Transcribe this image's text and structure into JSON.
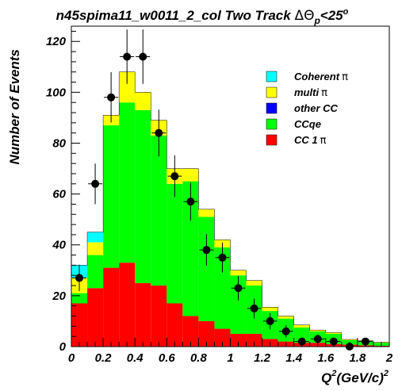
{
  "chart_data": {
    "type": "bar",
    "title": "n45spima11_w0011_2_col Two Track ΔΘp<25°",
    "title_parts": {
      "main": "n45spima11_w0011_2_col Two Track ",
      "symbol": "ΔΘ",
      "sub": "p",
      "cut": "<25",
      "sup": "o"
    },
    "xlabel": "Q2(GeV/c)2",
    "xlabel_parts": {
      "q": "Q",
      "sup1": "2",
      "unit": "(GeV/c)",
      "sup2": "2"
    },
    "ylabel": "Number of Events",
    "xlim": [
      0,
      2
    ],
    "ylim": [
      0,
      126
    ],
    "x_ticks": [
      0,
      0.2,
      0.4,
      0.6,
      0.8,
      1,
      1.2,
      1.4,
      1.6,
      1.8,
      2
    ],
    "x_tick_labels": [
      "0",
      "0.2",
      "0.4",
      "0.6",
      "0.8",
      "1",
      "1.2",
      "1.4",
      "1.6",
      "1.8",
      "2"
    ],
    "y_ticks": [
      0,
      20,
      40,
      60,
      80,
      100,
      120
    ],
    "y_tick_labels": [
      "0",
      "20",
      "40",
      "60",
      "80",
      "100",
      "120"
    ],
    "bin_edges": [
      0,
      0.1,
      0.2,
      0.3,
      0.4,
      0.5,
      0.6,
      0.7,
      0.8,
      0.9,
      1.0,
      1.1,
      1.2,
      1.3,
      1.4,
      1.5,
      1.6,
      1.7,
      1.8,
      1.9,
      2.0
    ],
    "stacked": true,
    "series": [
      {
        "name": "CC 1π",
        "label": "CC 1",
        "pi": "π",
        "color": "#ff0000",
        "values": [
          17,
          23,
          31,
          33,
          25,
          24,
          17,
          12,
          10,
          7,
          5,
          5,
          3,
          2,
          1.5,
          1.5,
          1,
          0.8,
          0.5,
          0.3
        ]
      },
      {
        "name": "CCqe",
        "label": "CCqe",
        "pi": "",
        "color": "#00ff00",
        "values": [
          4,
          13,
          56,
          63,
          68,
          59,
          47,
          53,
          41,
          32,
          23,
          19,
          11,
          9,
          6,
          4.5,
          4,
          1.7,
          1.5,
          1.2
        ]
      },
      {
        "name": "other CC",
        "label": "other CC",
        "pi": "",
        "color": "#0000ff",
        "values": [
          0,
          0,
          0,
          0,
          0,
          0,
          0,
          0,
          0,
          0,
          0,
          0,
          0,
          0,
          0,
          0,
          0,
          0,
          0,
          0
        ]
      },
      {
        "name": "multi π",
        "label": "multi",
        "pi": "π",
        "color": "#ffff00",
        "values": [
          6,
          5,
          4,
          12,
          7,
          6,
          6,
          5,
          3,
          3,
          2,
          2,
          1.5,
          1,
          1,
          0.5,
          0.5,
          0.3,
          0.3,
          0.2
        ]
      },
      {
        "name": "Coherent π",
        "label": "Coherent",
        "pi": "π",
        "color": "#00ffff",
        "values": [
          5,
          4,
          0,
          0,
          0,
          0,
          0,
          0,
          0,
          0,
          0,
          0,
          0,
          0,
          0,
          0,
          0,
          0,
          0,
          0
        ]
      }
    ],
    "legend_order": [
      "Coherent π",
      "multi π",
      "other CC",
      "CCqe",
      "CC 1π"
    ],
    "legend_placement": "top-right",
    "data_points": {
      "x": [
        0.05,
        0.15,
        0.25,
        0.35,
        0.45,
        0.55,
        0.65,
        0.75,
        0.85,
        0.95,
        1.05,
        1.15,
        1.25,
        1.35,
        1.45,
        1.55,
        1.65,
        1.75,
        1.85
      ],
      "y": [
        27,
        64,
        98,
        114,
        114,
        84,
        67,
        57,
        38,
        35,
        23,
        15,
        10,
        6,
        2,
        3,
        2,
        0,
        2
      ],
      "err": [
        5.2,
        8,
        9.9,
        10.7,
        10.7,
        9.2,
        8.2,
        7.5,
        6.2,
        5.9,
        4.8,
        3.9,
        3.2,
        2.4,
        1.4,
        1.7,
        1.4,
        0,
        1.4
      ]
    },
    "grid": false
  }
}
